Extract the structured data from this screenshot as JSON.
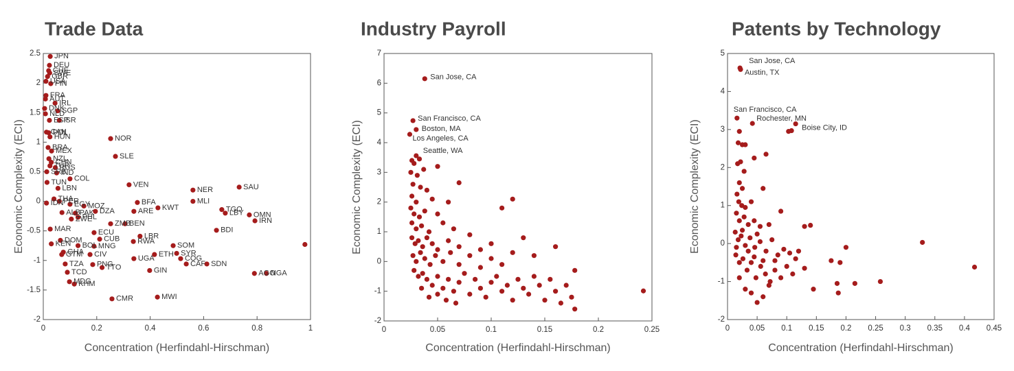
{
  "chart_data": [
    {
      "type": "scatter",
      "title": "Trade Data",
      "x_label": "Concentration (Herfindahl-Hirschman)",
      "y_label": "Economic Complexity (ECI)",
      "color": "#a51c1c",
      "xlim": [
        0,
        1
      ],
      "ylim": [
        -2,
        2.5
      ],
      "xticks": [
        0,
        0.2,
        0.4,
        0.6,
        0.8,
        1
      ],
      "yticks": [
        -2,
        -1.5,
        -1,
        -0.5,
        0,
        0.5,
        1,
        1.5,
        2,
        2.5
      ],
      "x": [
        0.026,
        0.023,
        0.02,
        0.024,
        0.016,
        0.01,
        0.028,
        0.01,
        0.008,
        0.044,
        0.005,
        0.054,
        0.008,
        0.023,
        0.06,
        0.012,
        0.02,
        0.025,
        0.252,
        0.27,
        0.018,
        0.031,
        0.021,
        0.03,
        0.025,
        0.045,
        0.013,
        0.05,
        0.1,
        0.014,
        0.055,
        0.321,
        0.56,
        0.733,
        0.56,
        0.04,
        0.06,
        0.1,
        0.012,
        0.352,
        0.152,
        0.429,
        0.339,
        0.195,
        0.07,
        0.12,
        0.668,
        0.681,
        0.771,
        0.13,
        0.105,
        0.792,
        0.252,
        0.306,
        0.026,
        0.648,
        0.19,
        0.362,
        0.211,
        0.064,
        0.337,
        0.03,
        0.486,
        0.13,
        0.19,
        0.075,
        0.499,
        0.069,
        0.416,
        0.175,
        0.339,
        0.514,
        0.082,
        0.535,
        0.612,
        0.185,
        0.22,
        0.398,
        0.09,
        0.79,
        0.835,
        0.098,
        0.116,
        0.257,
        0.427,
        0.979
      ],
      "values": [
        2.45,
        2.3,
        2.21,
        2.17,
        2.11,
        2.03,
        1.99,
        1.79,
        1.73,
        1.66,
        1.57,
        1.53,
        1.48,
        1.37,
        1.37,
        1.17,
        1.16,
        1.09,
        1.06,
        0.76,
        0.91,
        0.85,
        0.72,
        0.66,
        0.6,
        0.57,
        0.5,
        0.48,
        0.38,
        0.32,
        0.22,
        0.28,
        0.19,
        0.24,
        0,
        0.04,
        0,
        -0.05,
        -0.03,
        -0.02,
        -0.08,
        -0.11,
        -0.17,
        -0.17,
        -0.19,
        -0.2,
        -0.14,
        -0.2,
        -0.23,
        -0.27,
        -0.3,
        -0.33,
        -0.38,
        -0.38,
        -0.47,
        -0.49,
        -0.53,
        -0.59,
        -0.64,
        -0.66,
        -0.68,
        -0.72,
        -0.75,
        -0.75,
        -0.76,
        -0.86,
        -0.88,
        -0.9,
        -0.9,
        -0.9,
        -0.97,
        -0.97,
        -1.06,
        -1.06,
        -1.06,
        -1.07,
        -1.12,
        -1.17,
        -1.2,
        -1.22,
        -1.22,
        -1.36,
        -1.4,
        -1.65,
        -1.62,
        -0.73
      ],
      "labels": [
        "JPN",
        "DEU",
        "CHE",
        "SWE",
        "GBR",
        "USA",
        "FIN",
        "FRA",
        "AUT",
        "IRL",
        "DNK",
        "SGP",
        "NLD",
        "ESP",
        "ISR",
        "CAN",
        "POL",
        "HUN",
        "NOR",
        "SLE",
        "BRA",
        "MEX",
        "NZL",
        "CHN",
        "TUR",
        "RUS",
        "SRB",
        "IND",
        "COL",
        "TUN",
        "LBN",
        "VEN",
        "NER",
        "SAU",
        "MLI",
        "THA",
        "PER",
        "EGY",
        "IDN",
        "BFA",
        "MOZ",
        "KWT",
        "ARE",
        "DZA",
        "ALB",
        "PAK",
        "TGO",
        "LBY",
        "OMN",
        "PHL",
        "ZWE",
        "IRN",
        "ZMB",
        "BEN",
        "MAR",
        "BDI",
        "ECU",
        "LBR",
        "CUB",
        "DOM",
        "RWA",
        "KEN",
        "SOM",
        "BOL",
        "MNG",
        "GHA",
        "SYR",
        "GTM",
        "ETH",
        "CIV",
        "UGA",
        "COG",
        "TZA",
        "CAF",
        "SDN",
        "PNG",
        "TTO",
        "GIN",
        "TCD",
        "AGO",
        "NGA",
        "MDG",
        "KHM",
        "CMR",
        "MWI",
        null
      ]
    },
    {
      "type": "scatter",
      "title": "Industry Payroll",
      "x_label": "Concentration (Herfindahl-Hirschman)",
      "y_label": "Economic Complexity (ECI)",
      "color": "#a51c1c",
      "xlim": [
        0,
        0.25
      ],
      "ylim": [
        -2,
        7
      ],
      "xticks": [
        0,
        0.05,
        0.1,
        0.15,
        0.2,
        0.25
      ],
      "yticks": [
        -2,
        -1,
        0,
        1,
        2,
        3,
        4,
        5,
        6,
        7
      ],
      "x": [
        0.038,
        0.027,
        0.03,
        0.024,
        0.03,
        0.026,
        0.028,
        0.033,
        0.025,
        0.031,
        0.037,
        0.05,
        0.027,
        0.034,
        0.04,
        0.026,
        0.03,
        0.045,
        0.06,
        0.025,
        0.028,
        0.033,
        0.038,
        0.05,
        0.07,
        0.026,
        0.03,
        0.035,
        0.042,
        0.055,
        0.065,
        0.12,
        0.11,
        0.026,
        0.029,
        0.032,
        0.036,
        0.04,
        0.045,
        0.05,
        0.06,
        0.07,
        0.08,
        0.09,
        0.1,
        0.13,
        0.027,
        0.03,
        0.034,
        0.038,
        0.043,
        0.048,
        0.055,
        0.062,
        0.07,
        0.08,
        0.09,
        0.1,
        0.11,
        0.12,
        0.14,
        0.16,
        0.028,
        0.032,
        0.036,
        0.04,
        0.045,
        0.05,
        0.055,
        0.06,
        0.065,
        0.07,
        0.075,
        0.08,
        0.085,
        0.09,
        0.095,
        0.1,
        0.105,
        0.11,
        0.115,
        0.12,
        0.125,
        0.13,
        0.135,
        0.14,
        0.145,
        0.15,
        0.155,
        0.16,
        0.165,
        0.17,
        0.175,
        0.178,
        0.178,
        0.042,
        0.05,
        0.035,
        0.058,
        0.067,
        0.242
      ],
      "values": [
        6.15,
        4.74,
        4.44,
        4.28,
        3.56,
        3.4,
        3.3,
        3.45,
        3,
        2.9,
        3.1,
        3.2,
        2.6,
        2.5,
        2.4,
        2.2,
        2,
        2.1,
        2,
        1.8,
        1.6,
        1.5,
        1.7,
        1.6,
        2.65,
        1.3,
        1.1,
        1.2,
        1,
        1.3,
        1.1,
        2.1,
        1.8,
        0.8,
        0.6,
        0.7,
        0.5,
        0.8,
        0.6,
        0.4,
        0.7,
        0.5,
        0.9,
        0.4,
        0.6,
        0.8,
        0.2,
        0,
        0.3,
        0.1,
        -0.1,
        0.2,
        0,
        0.3,
        -0.1,
        0.2,
        -0.2,
        0.1,
        -0.1,
        0.3,
        0.2,
        0.5,
        -0.3,
        -0.5,
        -0.4,
        -0.6,
        -0.8,
        -0.5,
        -0.9,
        -0.6,
        -1,
        -0.7,
        -0.4,
        -1.1,
        -0.6,
        -0.9,
        -1.2,
        -0.7,
        -0.5,
        -1,
        -0.8,
        -1.3,
        -0.6,
        -0.9,
        -1.1,
        -0.5,
        -0.8,
        -1.3,
        -0.6,
        -1,
        -1.4,
        -0.8,
        -1.2,
        -1.6,
        -0.3,
        -1.2,
        -1.1,
        -0.9,
        -1.3,
        -1.4,
        -0.99
      ],
      "labels": [
        "San Jose, CA",
        "San Francisco, CA",
        "Boston, MA",
        "Los Angeles, CA",
        "Seattle, WA",
        null,
        null,
        null,
        null,
        null,
        null,
        null,
        null,
        null,
        null,
        null,
        null,
        null,
        null,
        null,
        null,
        null,
        null,
        null,
        null,
        null,
        null,
        null,
        null,
        null,
        null,
        null,
        null,
        null,
        null,
        null,
        null,
        null,
        null,
        null,
        null,
        null,
        null,
        null,
        null,
        null,
        null,
        null,
        null,
        null,
        null,
        null,
        null,
        null,
        null,
        null,
        null,
        null,
        null,
        null,
        null,
        null,
        null,
        null,
        null,
        null,
        null,
        null,
        null,
        null,
        null,
        null,
        null,
        null,
        null,
        null,
        null,
        null,
        null,
        null,
        null,
        null,
        null,
        null,
        null,
        null,
        null,
        null,
        null,
        null,
        null,
        null,
        null,
        null,
        null,
        null,
        null,
        null,
        null,
        null,
        null
      ]
    },
    {
      "type": "scatter",
      "title": "Patents by Technology",
      "x_label": "Concentration (Herfindahl-Hirschman)",
      "y_label": "Economic Complexity (ECI)",
      "color": "#a51c1c",
      "xlim": [
        0,
        0.45
      ],
      "ylim": [
        -2,
        5
      ],
      "xticks": [
        0,
        0.05,
        0.1,
        0.15,
        0.2,
        0.25,
        0.3,
        0.35,
        0.4,
        0.45
      ],
      "yticks": [
        -2,
        -1,
        0,
        1,
        2,
        3,
        4,
        5
      ],
      "x": [
        0.021,
        0.022,
        0.016,
        0.042,
        0.115,
        0.103,
        0.108,
        0.02,
        0.018,
        0.025,
        0.03,
        0.045,
        0.065,
        0.017,
        0.022,
        0.028,
        0.02,
        0.025,
        0.06,
        0.016,
        0.019,
        0.024,
        0.03,
        0.04,
        0.09,
        0.015,
        0.02,
        0.028,
        0.035,
        0.045,
        0.055,
        0.07,
        0.13,
        0.14,
        0.013,
        0.018,
        0.023,
        0.03,
        0.038,
        0.046,
        0.055,
        0.065,
        0.075,
        0.085,
        0.095,
        0.105,
        0.115,
        0.12,
        0.014,
        0.02,
        0.026,
        0.033,
        0.04,
        0.048,
        0.056,
        0.064,
        0.072,
        0.08,
        0.09,
        0.1,
        0.11,
        0.02,
        0.03,
        0.04,
        0.05,
        0.06,
        0.07,
        0.145,
        0.175,
        0.185,
        0.19,
        0.2,
        0.187,
        0.215,
        0.258,
        0.329,
        0.417,
        0.035,
        0.045,
        0.025,
        0.05,
        0.015,
        0.06,
        0.08,
        0.13
      ],
      "values": [
        4.62,
        4.58,
        3.3,
        3.16,
        3.15,
        2.95,
        2.97,
        2.95,
        2.65,
        2.6,
        2.6,
        2.25,
        2.35,
        2.1,
        2.15,
        1.9,
        1.6,
        1.45,
        1.45,
        1.3,
        1.1,
        1,
        0.95,
        1.1,
        0.85,
        0.8,
        0.6,
        0.7,
        0.5,
        0.6,
        0.45,
        0.5,
        0.45,
        0.48,
        0.3,
        0.1,
        0.2,
        -0.05,
        0.15,
        -0.1,
        0.05,
        -0.2,
        0.1,
        -0.3,
        -0.15,
        -0.25,
        -0.4,
        -0.2,
        -0.3,
        -0.5,
        -0.4,
        -0.7,
        -0.5,
        -0.9,
        -0.6,
        -0.8,
        -1,
        -0.7,
        -0.9,
        -0.6,
        -0.8,
        -0.9,
        -1.2,
        -1.3,
        -1.55,
        -1.4,
        -1.1,
        -1.2,
        -0.45,
        -1.05,
        -0.5,
        -0.1,
        -1.3,
        -1.05,
        -1,
        0.03,
        -0.62,
        -0.2,
        -0.35,
        0.35,
        0.25,
        -0.1,
        -0.45,
        -0.45,
        -0.65
      ],
      "labels": [
        "San Jose, CA",
        "Austin, TX",
        "San Francisco, CA",
        "Rochester, MN",
        "Boise City, ID",
        null,
        null,
        null,
        null,
        null,
        null,
        null,
        null,
        null,
        null,
        null,
        null,
        null,
        null,
        null,
        null,
        null,
        null,
        null,
        null,
        null,
        null,
        null,
        null,
        null,
        null,
        null,
        null,
        null,
        null,
        null,
        null,
        null,
        null,
        null,
        null,
        null,
        null,
        null,
        null,
        null,
        null,
        null,
        null,
        null,
        null,
        null,
        null,
        null,
        null,
        null,
        null,
        null,
        null,
        null,
        null,
        null,
        null,
        null,
        null,
        null,
        null,
        null,
        null,
        null,
        null,
        null,
        null,
        null,
        null,
        null,
        null,
        null,
        null,
        null,
        null,
        null,
        null,
        null,
        null
      ]
    }
  ]
}
